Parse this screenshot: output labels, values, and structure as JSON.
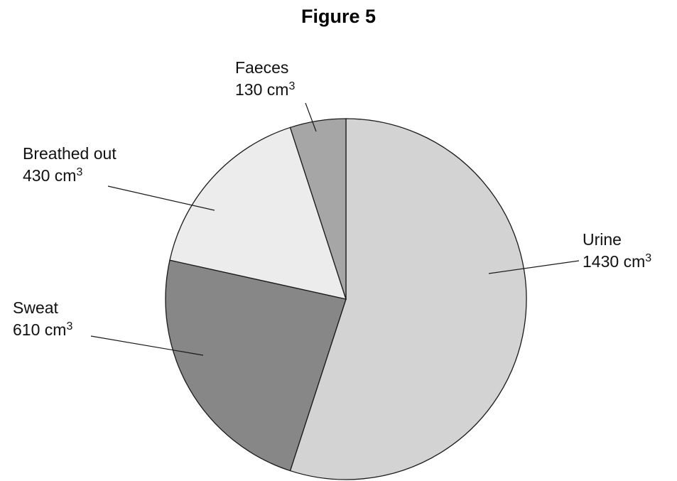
{
  "figure_title": "Figure 5",
  "chart_data": {
    "type": "pie",
    "title": "Figure 5",
    "unit": "cm",
    "unit_exponent": "3",
    "slices": [
      {
        "label": "Urine",
        "value": 1430,
        "value_text": "1430",
        "color": "#d3d3d3"
      },
      {
        "label": "Sweat",
        "value": 610,
        "value_text": "610",
        "color": "#878787"
      },
      {
        "label": "Breathed out",
        "value": 430,
        "value_text": "430",
        "color": "#ececec"
      },
      {
        "label": "Faeces",
        "value": 130,
        "value_text": "130",
        "color": "#a6a6a6"
      }
    ]
  }
}
